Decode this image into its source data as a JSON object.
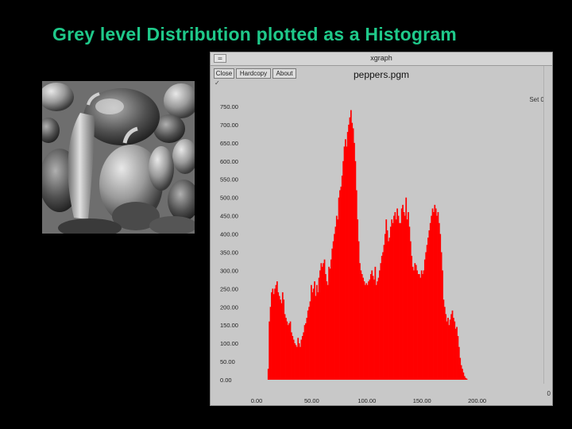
{
  "slide": {
    "title": "Grey level Distribution plotted as a Histogram"
  },
  "photo": {
    "subject": "peppers"
  },
  "window": {
    "title": "xgraph",
    "menu_icon": "menu-box-icon",
    "buttons": [
      "Close",
      "Hardcopy",
      "About"
    ],
    "set_label": "Set 0",
    "corner_label": "0"
  },
  "colors": {
    "background": "#000000",
    "title": "#1fc98a",
    "window": "#c8c8c8",
    "bars": "#ff0000"
  },
  "chart_data": {
    "type": "bar",
    "title": "peppers.pgm",
    "xlabel": "",
    "ylabel": "",
    "xlim": [
      0,
      245
    ],
    "ylim": [
      0,
      750
    ],
    "grid": false,
    "legend": "none",
    "x_ticks": [
      "0.00",
      "50.00",
      "100.00",
      "150.00",
      "200.00"
    ],
    "y_ticks": [
      "0.00",
      "50.00",
      "100.00",
      "150.00",
      "200.00",
      "250.00",
      "300.00",
      "350.00",
      "400.00",
      "450.00",
      "500.00",
      "550.00",
      "600.00",
      "650.00",
      "700.00",
      "750.00"
    ],
    "series": [
      {
        "x_start": 0,
        "x_step": 1,
        "values": [
          0,
          0,
          0,
          0,
          0,
          0,
          0,
          0,
          0,
          0,
          30,
          160,
          200,
          240,
          250,
          235,
          250,
          260,
          270,
          240,
          230,
          220,
          210,
          240,
          220,
          180,
          170,
          160,
          150,
          155,
          160,
          130,
          120,
          110,
          100,
          95,
          90,
          115,
          100,
          90,
          110,
          120,
          130,
          150,
          155,
          170,
          190,
          200,
          215,
          260,
          240,
          250,
          270,
          230,
          260,
          240,
          280,
          300,
          320,
          310,
          320,
          330,
          290,
          270,
          260,
          310,
          305,
          330,
          360,
          380,
          400,
          420,
          450,
          440,
          500,
          520,
          530,
          560,
          600,
          640,
          660,
          640,
          680,
          700,
          720,
          740,
          705,
          690,
          650,
          600,
          520,
          440,
          380,
          320,
          300,
          290,
          280,
          270,
          260,
          265,
          260,
          270,
          275,
          290,
          300,
          285,
          275,
          310,
          260,
          270,
          280,
          300,
          320,
          340,
          350,
          370,
          400,
          440,
          410,
          380,
          390,
          420,
          440,
          430,
          450,
          460,
          440,
          470,
          450,
          430,
          430,
          470,
          480,
          460,
          450,
          500,
          440,
          460,
          420,
          380,
          340,
          310,
          300,
          320,
          315,
          300,
          290,
          290,
          280,
          300,
          290,
          300,
          330,
          350,
          370,
          390,
          410,
          430,
          450,
          470,
          460,
          480,
          470,
          450,
          460,
          430,
          400,
          350,
          300,
          220,
          200,
          180,
          160,
          170,
          150,
          165,
          180,
          190,
          170,
          160,
          140,
          145,
          120,
          90,
          60,
          40,
          30,
          20,
          10,
          5,
          3,
          0,
          0,
          0,
          0,
          0,
          0,
          0,
          0,
          0
        ]
      }
    ]
  }
}
